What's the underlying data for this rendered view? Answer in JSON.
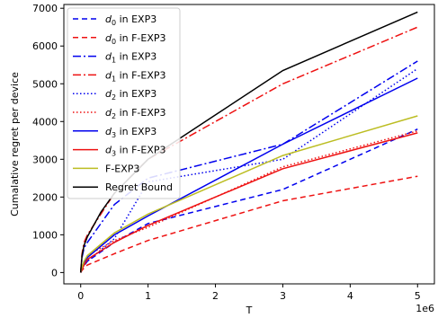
{
  "chart_data": {
    "type": "line",
    "title": "",
    "xlabel": "T",
    "ylabel": "Cumalative regret per device",
    "x_offset_label": "1e6",
    "xlim": [
      -0.25,
      5.25
    ],
    "ylim": [
      -300,
      7100
    ],
    "xticks": [
      0,
      1,
      2,
      3,
      4,
      5
    ],
    "xtick_labels": [
      "0",
      "1",
      "2",
      "3",
      "4",
      "5"
    ],
    "yticks": [
      0,
      1000,
      2000,
      3000,
      4000,
      5000,
      6000,
      7000
    ],
    "ytick_labels": [
      "0",
      "1000",
      "2000",
      "3000",
      "4000",
      "5000",
      "6000",
      "7000"
    ],
    "grid": false,
    "legend_position": "top-left",
    "series": [
      {
        "name": "d0 in EXP3",
        "legend_html": {
          "sym": "d",
          "sub": "0",
          "rest": " in EXP3"
        },
        "color": "#0000ee",
        "dash": "6,4",
        "x": [
          0,
          0.02,
          0.05,
          0.1,
          0.5,
          1,
          3,
          5
        ],
        "y": [
          0,
          80,
          180,
          300,
          800,
          1300,
          2200,
          3800
        ]
      },
      {
        "name": "d0 in F-EXP3",
        "legend_html": {
          "sym": "d",
          "sub": "0",
          "rest": " in F-EXP3"
        },
        "color": "#ee1111",
        "dash": "6,4",
        "x": [
          0,
          0.02,
          0.05,
          0.1,
          0.5,
          1,
          3,
          5
        ],
        "y": [
          0,
          60,
          120,
          200,
          500,
          850,
          1900,
          2550
        ]
      },
      {
        "name": "d1 in EXP3",
        "legend_html": {
          "sym": "d",
          "sub": "1",
          "rest": " in EXP3"
        },
        "color": "#0000ee",
        "dash": "9,3,2,3",
        "x": [
          0,
          0.02,
          0.05,
          0.1,
          0.5,
          1,
          3,
          5
        ],
        "y": [
          0,
          400,
          650,
          800,
          1800,
          2500,
          3400,
          5600
        ]
      },
      {
        "name": "d1 in F-EXP3",
        "legend_html": {
          "sym": "d",
          "sub": "1",
          "rest": " in F-EXP3"
        },
        "color": "#ee1111",
        "dash": "9,3,2,3",
        "x": [
          0,
          0.02,
          0.05,
          0.1,
          0.5,
          1,
          3,
          5
        ],
        "y": [
          0,
          500,
          800,
          1000,
          2100,
          3000,
          5000,
          6500
        ]
      },
      {
        "name": "d2 in EXP3",
        "legend_html": {
          "sym": "d",
          "sub": "2",
          "rest": " in EXP3"
        },
        "color": "#0000ee",
        "dash": "1.5,2.5",
        "x": [
          0,
          0.02,
          0.05,
          0.1,
          0.5,
          1,
          3,
          5
        ],
        "y": [
          0,
          100,
          200,
          300,
          900,
          2400,
          3000,
          5400
        ]
      },
      {
        "name": "d2 in F-EXP3",
        "legend_html": {
          "sym": "d",
          "sub": "2",
          "rest": " in F-EXP3"
        },
        "color": "#ee1111",
        "dash": "1.5,2.5",
        "x": [
          0,
          0.02,
          0.05,
          0.1,
          0.5,
          1,
          3,
          5
        ],
        "y": [
          0,
          150,
          300,
          450,
          850,
          1200,
          2800,
          3750
        ]
      },
      {
        "name": "d3 in EXP3",
        "legend_html": {
          "sym": "d",
          "sub": "3",
          "rest": " in EXP3"
        },
        "color": "#0000ee",
        "dash": "",
        "x": [
          0,
          0.02,
          0.05,
          0.1,
          0.5,
          1,
          3,
          5
        ],
        "y": [
          0,
          120,
          250,
          400,
          1000,
          1500,
          3400,
          5150
        ]
      },
      {
        "name": "d3 in F-EXP3",
        "legend_html": {
          "sym": "d",
          "sub": "3",
          "rest": " in F-EXP3"
        },
        "color": "#ee1111",
        "dash": "",
        "x": [
          0,
          0.02,
          0.05,
          0.1,
          0.5,
          1,
          3,
          5
        ],
        "y": [
          0,
          100,
          200,
          350,
          800,
          1250,
          2750,
          3700
        ]
      },
      {
        "name": "F-EXP3",
        "legend_html": {
          "sym": "",
          "sub": "",
          "rest": "F-EXP3"
        },
        "color": "#bcbd22",
        "dash": "",
        "x": [
          0,
          0.02,
          0.05,
          0.1,
          0.5,
          1,
          3,
          5
        ],
        "y": [
          0,
          150,
          300,
          450,
          1050,
          1550,
          3100,
          4150
        ]
      },
      {
        "name": "Regret Bound",
        "legend_html": {
          "sym": "",
          "sub": "",
          "rest": "Regret Bound"
        },
        "color": "#000000",
        "dash": "",
        "x": [
          0,
          0.02,
          0.05,
          0.1,
          0.3,
          0.5,
          1,
          3,
          5
        ],
        "y": [
          0,
          450,
          720,
          950,
          1600,
          2100,
          3000,
          5350,
          6900
        ]
      }
    ]
  }
}
